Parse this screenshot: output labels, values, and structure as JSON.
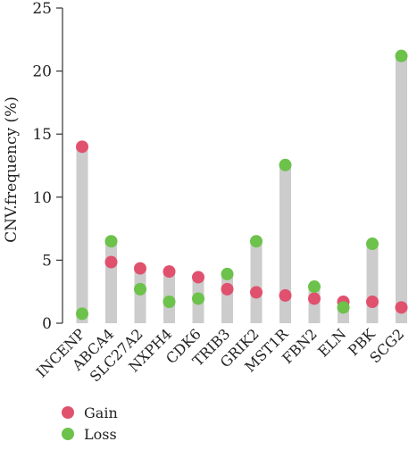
{
  "chart_data": {
    "type": "scatter",
    "title": "",
    "xlabel": "",
    "ylabel": "CNV.frequency (%)",
    "ylim": [
      0,
      25
    ],
    "yticks": [
      0,
      5,
      10,
      15,
      20,
      25
    ],
    "grid": false,
    "legend_position": "bottom-left",
    "categories": [
      "INCENP",
      "ABCA4",
      "SLC27A2",
      "NXPH4",
      "CDK6",
      "TRIB3",
      "GRIK2",
      "MST1R",
      "FBN2",
      "ELN",
      "PBK",
      "SCG2"
    ],
    "series": [
      {
        "name": "Gain",
        "color": "#e0516e",
        "values": [
          14.0,
          4.85,
          4.35,
          4.1,
          3.65,
          2.7,
          2.45,
          2.2,
          1.95,
          1.7,
          1.7,
          1.25
        ]
      },
      {
        "name": "Loss",
        "color": "#6cc24a",
        "values": [
          0.75,
          6.5,
          2.7,
          1.7,
          1.95,
          3.9,
          6.5,
          12.55,
          2.9,
          1.25,
          6.3,
          21.2
        ]
      }
    ],
    "bar_color": "#cccccc"
  }
}
